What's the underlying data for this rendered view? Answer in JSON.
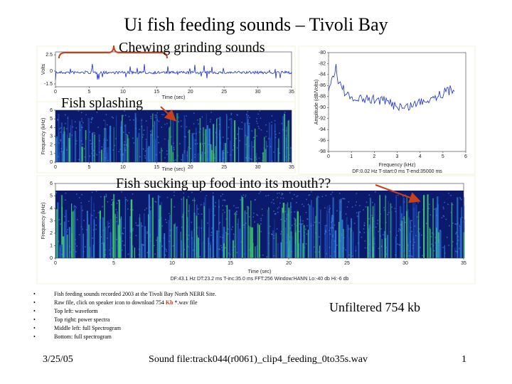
{
  "title": "Ui fish feeding sounds – Tivoli Bay",
  "annotations": [
    "Chewing grinding sounds",
    "Fish splashing",
    "Fish sucking up food into its mouth??"
  ],
  "waveform": {
    "y_label": "Volts",
    "yticks": [
      2.5,
      0,
      -1.5
    ],
    "x_label": "Time (sec)",
    "xticks": [
      0,
      5,
      10,
      15,
      20,
      25,
      30,
      35
    ]
  },
  "spectrogram_small": {
    "y_label": "Frequency (kHz)",
    "yticks": [
      0,
      1,
      2,
      3,
      4,
      5,
      6
    ],
    "x_label": "Time (sec)",
    "xticks": [
      0,
      5,
      10,
      15,
      20,
      25,
      30,
      35
    ]
  },
  "power_spectrum": {
    "y_label": "Amplitude (dB/Volts)",
    "yticks": [
      -80,
      -82,
      -84,
      -86,
      -88,
      -90,
      -92,
      -94,
      -96,
      -98
    ],
    "x_label": "Frequency (kHz)",
    "xticks": [
      0,
      1,
      2,
      3,
      4,
      5,
      6
    ],
    "footer": "DF:0.02 Hz   T-start:0 ms   T-end:35000 ms"
  },
  "spectrogram_full": {
    "y_label": "Frequency (kHz)",
    "yticks": [
      0,
      1,
      2,
      3,
      4,
      5,
      6
    ],
    "x_label": "Time (sec)",
    "xticks": [
      0,
      5,
      10,
      15,
      20,
      25,
      30,
      35
    ],
    "footer": "DF:43.1 Hz   DT:23.2 ms   T-inc:35.0 ms   FFT:256   Window:HANN   Lo:-40 db   Hi:-6 db"
  },
  "bullets": [
    [
      "Fish feeding sounds recorded 2003 at the Tivoli Bay North NERR Site."
    ],
    [
      "Raw file, click on speaker icon to download 754 ",
      "Kb",
      " *.wav file"
    ],
    [
      "Top left: waveform"
    ],
    [
      "Top right: power spectra"
    ],
    [
      "Middle left: full Spectrogram"
    ],
    [
      "Bottom: full spectrogram"
    ]
  ],
  "side_note": "Unfiltered 754 kb",
  "footer": {
    "date": "3/25/05",
    "file": "Sound file:track044(r0061)_clip4_feeding_0to35s.wav",
    "page": "1"
  }
}
